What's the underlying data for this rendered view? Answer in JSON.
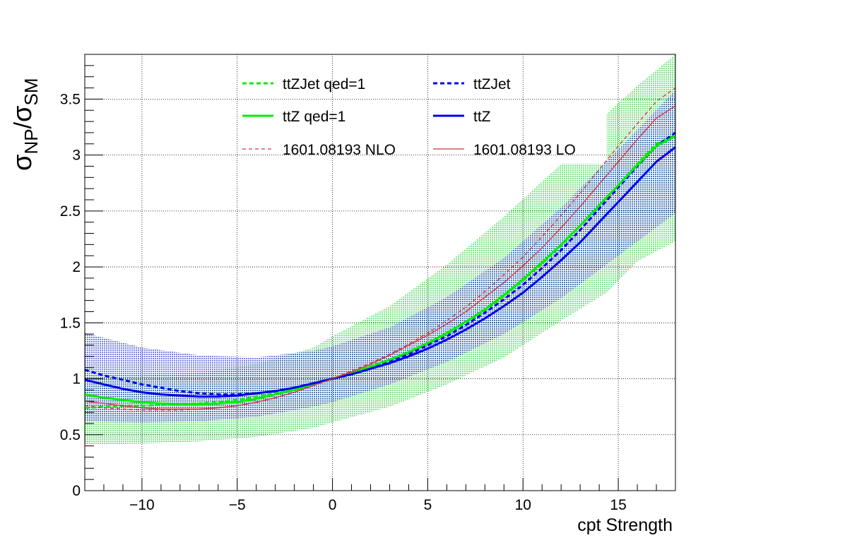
{
  "chart_data": {
    "type": "line",
    "xlabel": "cpt Strength",
    "ylabel": "σNP/σSM",
    "ylabel_parts": {
      "sym1": "σ",
      "sub1": "NP",
      "slash": "/",
      "sym2": "σ",
      "sub2": "SM"
    },
    "xlim": [
      -13,
      18
    ],
    "ylim": [
      0,
      3.9
    ],
    "xticks": [
      -10,
      -5,
      0,
      5,
      10,
      15
    ],
    "xtick_labels": [
      "−10",
      "−5",
      "0",
      "5",
      "10",
      "15"
    ],
    "yticks": [
      0,
      0.5,
      1,
      1.5,
      2,
      2.5,
      3,
      3.5
    ],
    "ytick_labels": [
      "0",
      "0.5",
      "1",
      "1.5",
      "2",
      "2.5",
      "3",
      "3.5"
    ],
    "grid": true,
    "legend_position": "top-center",
    "x": [
      -13,
      -12,
      -11,
      -10,
      -9,
      -8,
      -7,
      -6,
      -5,
      -4,
      -3,
      -2,
      -1,
      0,
      1,
      2,
      3,
      4,
      5,
      6,
      7,
      8,
      9,
      10,
      11,
      12,
      13,
      14,
      15,
      16,
      17,
      18
    ],
    "series": [
      {
        "name": "ttZJet qed=1",
        "color": "#00ee00",
        "style": "dashed",
        "width": 3,
        "values": [
          0.74,
          0.75,
          0.76,
          0.76,
          0.77,
          0.77,
          0.78,
          0.79,
          0.81,
          0.84,
          0.87,
          0.91,
          0.96,
          1.0,
          1.05,
          1.1,
          1.16,
          1.23,
          1.31,
          1.4,
          1.5,
          1.61,
          1.74,
          1.88,
          2.03,
          2.19,
          2.37,
          2.55,
          2.73,
          2.92,
          3.1,
          3.18
        ]
      },
      {
        "name": "ttZJet",
        "color": "#0000ee",
        "style": "dashed",
        "width": 3,
        "values": [
          1.08,
          1.03,
          0.99,
          0.95,
          0.92,
          0.89,
          0.87,
          0.86,
          0.86,
          0.87,
          0.89,
          0.92,
          0.96,
          1.0,
          1.04,
          1.09,
          1.15,
          1.22,
          1.3,
          1.38,
          1.48,
          1.59,
          1.71,
          1.84,
          1.99,
          2.15,
          2.33,
          2.52,
          2.71,
          2.9,
          3.08,
          3.2
        ]
      },
      {
        "name": "ttZ qed=1",
        "color": "#00ee00",
        "style": "solid",
        "width": 3,
        "values": [
          0.86,
          0.83,
          0.81,
          0.79,
          0.78,
          0.77,
          0.77,
          0.78,
          0.79,
          0.82,
          0.86,
          0.9,
          0.95,
          1.0,
          1.05,
          1.11,
          1.17,
          1.24,
          1.32,
          1.41,
          1.51,
          1.62,
          1.75,
          1.89,
          2.04,
          2.2,
          2.37,
          2.55,
          2.73,
          2.91,
          3.08,
          3.17
        ]
      },
      {
        "name": "ttZ",
        "color": "#0000ee",
        "style": "solid",
        "width": 3,
        "values": [
          0.99,
          0.95,
          0.91,
          0.88,
          0.86,
          0.85,
          0.84,
          0.84,
          0.85,
          0.87,
          0.89,
          0.92,
          0.96,
          1.0,
          1.04,
          1.09,
          1.14,
          1.2,
          1.27,
          1.35,
          1.44,
          1.54,
          1.65,
          1.77,
          1.91,
          2.06,
          2.22,
          2.4,
          2.58,
          2.76,
          2.94,
          3.07
        ]
      },
      {
        "name": "1601.08193 NLO",
        "color": "#cc3344",
        "style": "dashed",
        "width": 1.3,
        "values": [
          0.76,
          0.74,
          0.73,
          0.72,
          0.72,
          0.72,
          0.73,
          0.74,
          0.76,
          0.79,
          0.83,
          0.88,
          0.94,
          1.0,
          1.07,
          1.14,
          1.22,
          1.31,
          1.41,
          1.52,
          1.64,
          1.78,
          1.93,
          2.09,
          2.27,
          2.46,
          2.66,
          2.87,
          3.08,
          3.28,
          3.48,
          3.6
        ]
      },
      {
        "name": "1601.08193 LO",
        "color": "#cc3344",
        "style": "solid",
        "width": 1.3,
        "values": [
          0.8,
          0.78,
          0.76,
          0.74,
          0.73,
          0.73,
          0.73,
          0.74,
          0.76,
          0.79,
          0.83,
          0.88,
          0.94,
          1.0,
          1.06,
          1.13,
          1.21,
          1.3,
          1.39,
          1.49,
          1.6,
          1.73,
          1.86,
          2.01,
          2.17,
          2.35,
          2.54,
          2.74,
          2.94,
          3.14,
          3.33,
          3.44
        ]
      }
    ],
    "bands": [
      {
        "color": "#66dd77",
        "opacity": 0.55,
        "x": [
          -13,
          -10,
          -7,
          -4,
          -1,
          0,
          3,
          6,
          9,
          12,
          14.4,
          14.4,
          16,
          18
        ],
        "lower": [
          0.41,
          0.42,
          0.44,
          0.48,
          0.56,
          0.61,
          0.75,
          0.95,
          1.19,
          1.52,
          1.77,
          1.77,
          2.05,
          2.23
        ],
        "upper": [
          1.03,
          1.03,
          1.05,
          1.13,
          1.28,
          1.38,
          1.65,
          2.02,
          2.45,
          2.92,
          2.92,
          3.37,
          3.62,
          3.9
        ]
      },
      {
        "color": "#3344cc",
        "opacity": 0.35,
        "x": [
          -13,
          -10,
          -7,
          -4,
          -1,
          0,
          3,
          6,
          9,
          12,
          15,
          18
        ],
        "lower": [
          0.62,
          0.61,
          0.62,
          0.66,
          0.75,
          0.79,
          0.95,
          1.15,
          1.4,
          1.72,
          2.1,
          2.48
        ],
        "upper": [
          1.41,
          1.28,
          1.21,
          1.19,
          1.25,
          1.29,
          1.46,
          1.73,
          2.08,
          2.53,
          3.05,
          3.58
        ]
      }
    ]
  }
}
